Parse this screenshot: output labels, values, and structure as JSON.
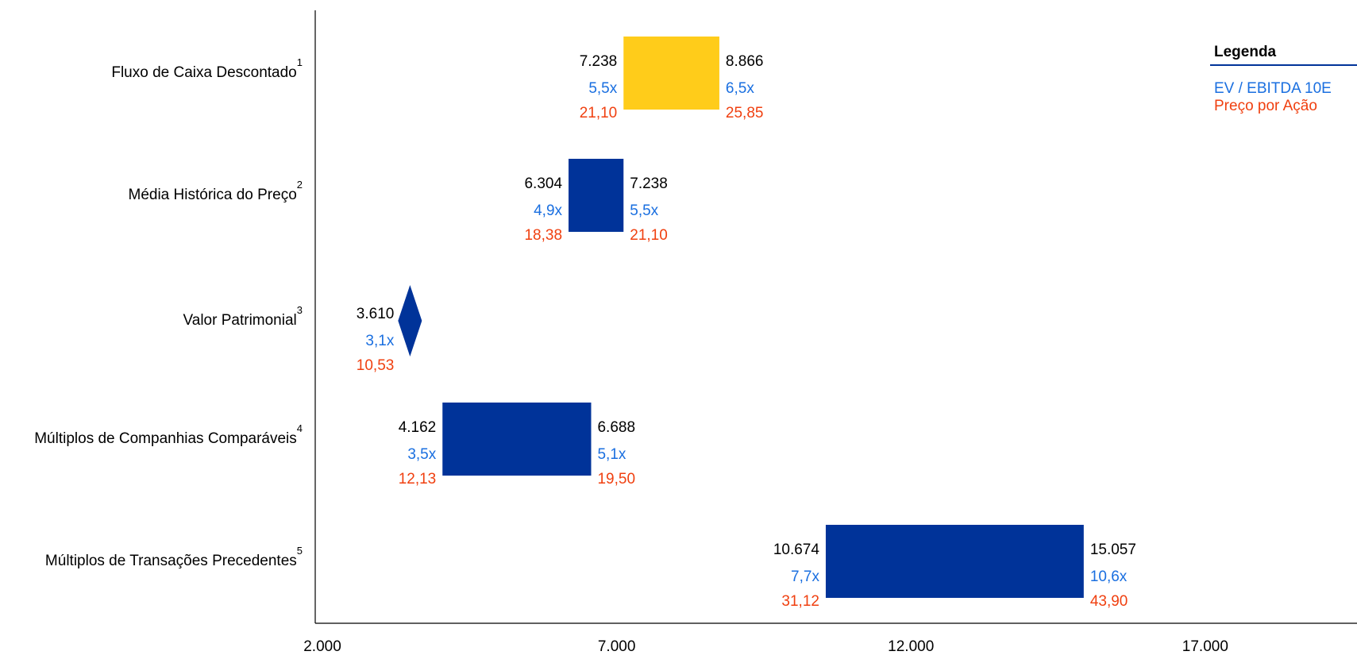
{
  "chart_data": {
    "type": "range_bar",
    "categories": [
      "Fluxo de Caixa Descontado",
      "Média Histórica do Preço",
      "Valor Patrimonial",
      "Múltiplos de Companhias Comparáveis",
      "Múltiplos de Transações Precedentes"
    ],
    "category_notes": [
      "1",
      "2",
      "3",
      "4",
      "5"
    ],
    "low": [
      7238,
      6304,
      3610,
      4162,
      10674
    ],
    "low_labels": [
      "7.238",
      "6.304",
      "3.610",
      "4.162",
      "10.674"
    ],
    "low_multiples": [
      "5,5x",
      "4,9x",
      "3,1x",
      "3,5x",
      "7,7x"
    ],
    "low_prices": [
      "21,10",
      "18,38",
      "10,53",
      "12,13",
      "31,12"
    ],
    "high": [
      8866,
      7238,
      null,
      6688,
      15057
    ],
    "high_labels": [
      "8.866",
      "7.238",
      null,
      "6.688",
      "15.057"
    ],
    "high_multiples": [
      "6,5x",
      "5,5x",
      null,
      "5,1x",
      "10,6x"
    ],
    "high_prices": [
      "25,85",
      "21,10",
      null,
      "19,50",
      "43,90"
    ],
    "colors": [
      "#ffcc1a",
      "#003399",
      "#003399",
      "#003399",
      "#003399"
    ],
    "xlim": [
      2000,
      19700
    ],
    "xticks": [
      {
        "value": 2000,
        "label": "2.000"
      },
      {
        "value": 7000,
        "label": "7.000"
      },
      {
        "value": 12000,
        "label": "12.000"
      },
      {
        "value": 17000,
        "label": "17.000"
      }
    ],
    "legend": {
      "title": "Legenda",
      "items": [
        {
          "name": "EV / EBITDA 10E",
          "color": "#1a6fe0"
        },
        {
          "name": "Preço por Ação",
          "color": "#f04010"
        }
      ],
      "position": "top-right"
    },
    "value_color": "#000000"
  }
}
